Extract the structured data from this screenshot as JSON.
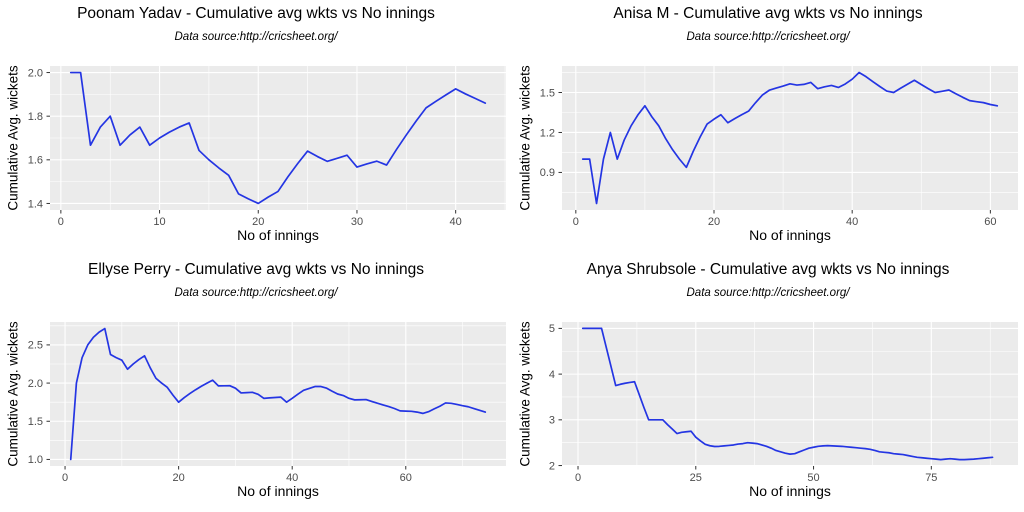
{
  "styles": {
    "background": "#ffffff",
    "panel_bg": "#ebebeb",
    "grid_major": "#ffffff",
    "grid_minor": "#ffffff",
    "line_color": "#2435e3",
    "tick_color": "#333333",
    "tick_label_color": "#4d4d4d",
    "text_color": "#000000"
  },
  "chart_data": [
    {
      "type": "line",
      "title": "Poonam Yadav - Cumulative avg wkts vs No innings",
      "subtitle": "Data source:http://cricsheet.org/",
      "xlabel": "No of innings",
      "ylabel": "Cumulative Avg. wickets",
      "legend": "none",
      "grid": true,
      "x_start": 1,
      "y": [
        2.0,
        2.0,
        1.667,
        1.75,
        1.8,
        1.667,
        1.714,
        1.75,
        1.667,
        1.7,
        1.727,
        1.75,
        1.769,
        1.643,
        1.6,
        1.563,
        1.529,
        1.444,
        1.421,
        1.4,
        1.429,
        1.455,
        1.522,
        1.583,
        1.64,
        1.615,
        1.593,
        1.607,
        1.621,
        1.567,
        1.581,
        1.594,
        1.576,
        1.647,
        1.714,
        1.778,
        1.838,
        1.868,
        1.897,
        1.925,
        1.902,
        1.881,
        1.86
      ],
      "xlim": [
        -1.1,
        45.1
      ],
      "ylim": [
        1.37,
        2.03
      ],
      "xticks": [
        0,
        10,
        20,
        30,
        40
      ],
      "xtick_labels": [
        "0",
        "10",
        "20",
        "30",
        "40"
      ],
      "xminor": [
        5,
        15,
        25,
        35,
        45
      ],
      "yticks": [
        1.4,
        1.6,
        1.8,
        2.0
      ],
      "ytick_labels": [
        "1.4",
        "1.6",
        "1.8",
        "2.0"
      ],
      "yminor": [
        1.5,
        1.7,
        1.9
      ]
    },
    {
      "type": "line",
      "title": "Anisa M - Cumulative avg wkts vs No innings",
      "subtitle": "Data source:http://cricsheet.org/",
      "xlabel": "No of innings",
      "ylabel": "Cumulative Avg. wickets",
      "legend": "none",
      "grid": true,
      "x_start": 1,
      "y": [
        1.0,
        1.0,
        0.667,
        1.0,
        1.2,
        1.0,
        1.143,
        1.25,
        1.333,
        1.4,
        1.318,
        1.25,
        1.154,
        1.071,
        1.0,
        0.938,
        1.059,
        1.167,
        1.263,
        1.3,
        1.333,
        1.273,
        1.304,
        1.333,
        1.36,
        1.423,
        1.481,
        1.517,
        1.533,
        1.548,
        1.565,
        1.556,
        1.561,
        1.576,
        1.529,
        1.543,
        1.553,
        1.538,
        1.564,
        1.6,
        1.65,
        1.619,
        1.581,
        1.545,
        1.511,
        1.5,
        1.532,
        1.562,
        1.592,
        1.56,
        1.529,
        1.5,
        1.509,
        1.519,
        1.491,
        1.464,
        1.439,
        1.431,
        1.424,
        1.41,
        1.4
      ],
      "xlim": [
        -2,
        64
      ],
      "ylim": [
        0.618,
        1.699
      ],
      "xticks": [
        0,
        20,
        40,
        60
      ],
      "xtick_labels": [
        "0",
        "20",
        "40",
        "60"
      ],
      "xminor": [
        10,
        30,
        50
      ],
      "yticks": [
        0.9,
        1.2,
        1.5
      ],
      "ytick_labels": [
        "0.9",
        "1.2",
        "1.5"
      ],
      "yminor": [
        0.75,
        1.05,
        1.35,
        1.65
      ]
    },
    {
      "type": "line",
      "title": "Ellyse Perry - Cumulative avg wkts vs No innings",
      "subtitle": "Data source:http://cricsheet.org/",
      "xlabel": "No of innings",
      "ylabel": "Cumulative Avg. wickets",
      "legend": "none",
      "grid": true,
      "x_start": 1,
      "y": [
        1.0,
        2.0,
        2.333,
        2.5,
        2.6,
        2.667,
        2.714,
        2.375,
        2.333,
        2.3,
        2.182,
        2.25,
        2.308,
        2.357,
        2.2,
        2.063,
        2.0,
        1.944,
        1.842,
        1.75,
        1.81,
        1.864,
        1.913,
        1.958,
        2.0,
        2.038,
        1.963,
        1.964,
        1.966,
        1.933,
        1.871,
        1.875,
        1.879,
        1.853,
        1.8,
        1.806,
        1.811,
        1.816,
        1.75,
        1.8,
        1.854,
        1.905,
        1.93,
        1.955,
        1.956,
        1.935,
        1.894,
        1.857,
        1.837,
        1.8,
        1.78,
        1.782,
        1.784,
        1.76,
        1.736,
        1.714,
        1.693,
        1.667,
        1.636,
        1.633,
        1.63,
        1.62,
        1.603,
        1.625,
        1.662,
        1.697,
        1.74,
        1.735,
        1.72,
        1.704,
        1.69,
        1.667,
        1.644,
        1.62
      ],
      "xlim": [
        -2.65,
        77.65
      ],
      "ylim": [
        0.914,
        2.8
      ],
      "xticks": [
        0,
        20,
        40,
        60
      ],
      "xtick_labels": [
        "0",
        "20",
        "40",
        "60"
      ],
      "xminor": [
        10,
        30,
        50,
        70
      ],
      "yticks": [
        1.0,
        1.5,
        2.0,
        2.5
      ],
      "ytick_labels": [
        "1.0",
        "1.5",
        "2.0",
        "2.5"
      ],
      "yminor": [
        1.25,
        1.75,
        2.25,
        2.75
      ]
    },
    {
      "type": "line",
      "title": "Anya Shrubsole - Cumulative avg wkts vs No innings",
      "subtitle": "Data source:http://cricsheet.org/",
      "xlabel": "No of innings",
      "ylabel": "Cumulative Avg. wickets",
      "legend": "none",
      "grid": true,
      "x_start": 1,
      "y": [
        5.0,
        5.0,
        5.0,
        5.0,
        5.0,
        4.583,
        4.167,
        3.75,
        3.778,
        3.8,
        3.818,
        3.833,
        3.55,
        3.267,
        3.0,
        3.0,
        3.0,
        3.0,
        2.895,
        2.8,
        2.7,
        2.727,
        2.739,
        2.75,
        2.62,
        2.538,
        2.464,
        2.433,
        2.417,
        2.42,
        2.43,
        2.44,
        2.45,
        2.47,
        2.48,
        2.5,
        2.49,
        2.48,
        2.45,
        2.42,
        2.38,
        2.33,
        2.3,
        2.27,
        2.25,
        2.26,
        2.3,
        2.34,
        2.38,
        2.4,
        2.42,
        2.43,
        2.435,
        2.43,
        2.425,
        2.42,
        2.41,
        2.4,
        2.39,
        2.38,
        2.37,
        2.355,
        2.33,
        2.3,
        2.29,
        2.28,
        2.26,
        2.25,
        2.24,
        2.22,
        2.2,
        2.18,
        2.17,
        2.16,
        2.15,
        2.14,
        2.13,
        2.14,
        2.15,
        2.14,
        2.13,
        2.13,
        2.135,
        2.14,
        2.15,
        2.16,
        2.17,
        2.18
      ],
      "xlim": [
        -3.4,
        93.4
      ],
      "ylim": [
        1.99,
        5.14
      ],
      "xticks": [
        0,
        25,
        50,
        75
      ],
      "xtick_labels": [
        "0",
        "25",
        "50",
        "75"
      ],
      "xminor": [
        12.5,
        37.5,
        62.5,
        87.5
      ],
      "yticks": [
        2,
        3,
        4,
        5
      ],
      "ytick_labels": [
        "2",
        "3",
        "4",
        "5"
      ],
      "yminor": [
        2.5,
        3.5,
        4.5
      ]
    }
  ]
}
